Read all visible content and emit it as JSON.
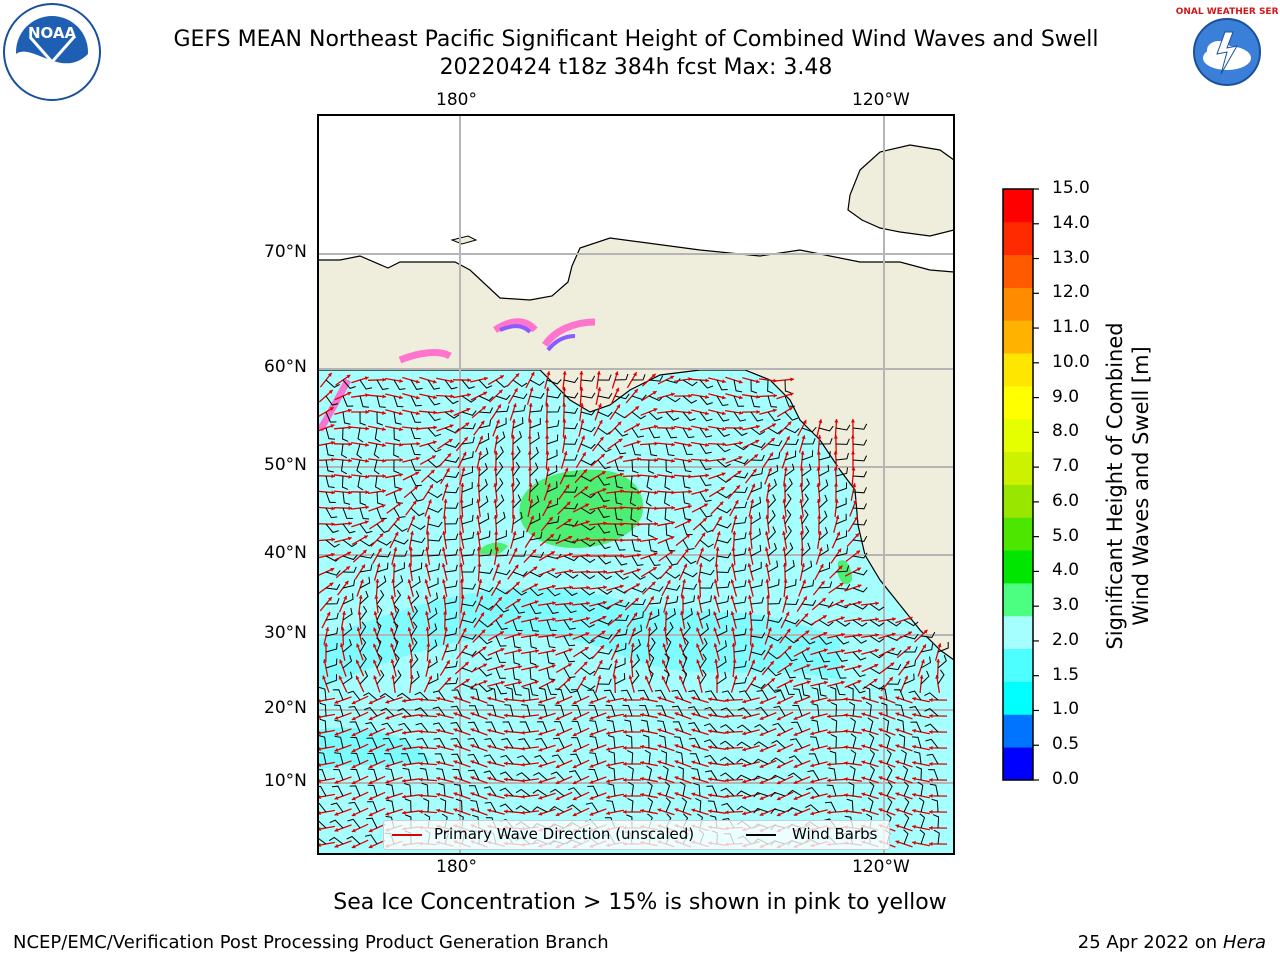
{
  "title": {
    "line1": "GEFS MEAN Northeast Pacific Significant Height of Combined Wind Waves and Swell",
    "line2": "20220424 t18z 384h fcst   Max: 3.48"
  },
  "logos": {
    "left": {
      "icon": "noaa-logo",
      "text": "NOAA"
    },
    "right": {
      "icon": "nws-logo",
      "text": "NATIONAL WEATHER SERVICE"
    }
  },
  "map": {
    "lon_ticks_top": [
      "180°",
      "120°W"
    ],
    "lon_ticks_bottom": [
      "180°",
      "120°W"
    ],
    "lat_ticks": [
      "70°N",
      "60°N",
      "50°N",
      "40°N",
      "30°N",
      "20°N",
      "10°N"
    ],
    "colors": {
      "land": "#efeddc",
      "ocean_base": "#a6ffff",
      "ocean_light": "#6ffbff",
      "ocean_green": "#4dee74",
      "grid": "#b5b5b5",
      "wave_arrow": "#e00000",
      "barb": "#000000",
      "ice_pink": "#ff66cc",
      "ice_purple": "#8a5cff"
    }
  },
  "colorbar": {
    "label_line1": "Significant Height of Combined",
    "label_line2": "Wind Waves and Swell [m]",
    "ticks": [
      "15.0",
      "14.0",
      "13.0",
      "12.0",
      "11.0",
      "10.0",
      "9.0",
      "8.0",
      "7.0",
      "6.0",
      "5.0",
      "4.0",
      "3.0",
      "2.0",
      "1.5",
      "1.0",
      "0.5",
      "0.0"
    ],
    "colors": [
      "#0000ff",
      "#0073ff",
      "#00ffff",
      "#4dffff",
      "#a6ffff",
      "#4dff80",
      "#00e600",
      "#4ce600",
      "#99e600",
      "#ccf200",
      "#e6ff00",
      "#ffff00",
      "#ffe600",
      "#ffb300",
      "#ff8c00",
      "#ff5a00",
      "#ff2a00",
      "#ff0000"
    ]
  },
  "legend": {
    "wave": "Primary Wave Direction (unscaled)",
    "barb": "Wind Barbs"
  },
  "note": "Sea Ice Concentration > 15% is shown in pink to yellow",
  "footer": {
    "left": "NCEP/EMC/Verification Post Processing Product Generation Branch",
    "right_prefix": "25 Apr 2022 on ",
    "right_host": "Hera"
  }
}
